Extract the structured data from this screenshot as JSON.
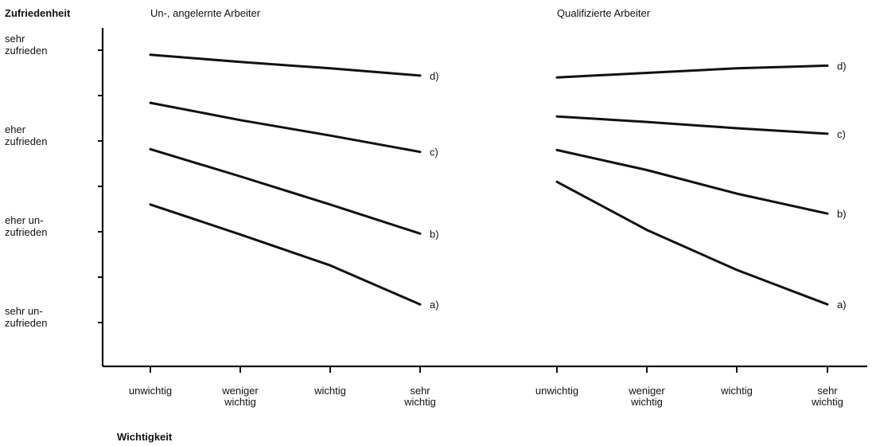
{
  "chart_data": {
    "type": "line",
    "ylabel": "Zufriedenheit",
    "xlabel": "Wichtigkeit",
    "y_categories": [
      [
        "sehr",
        "zufrieden"
      ],
      [
        "eher",
        "zufrieden"
      ],
      [
        "eher un-",
        "zufrieden"
      ],
      [
        "sehr un-",
        "zufrieden"
      ]
    ],
    "x_categories": [
      [
        "unwichtig"
      ],
      [
        "weniger",
        "wichtig"
      ],
      [
        "wichtig"
      ],
      [
        "sehr",
        "wichtig"
      ]
    ],
    "y_scale": "1 = sehr zufrieden ... 4 = sehr unzufrieden (minor ticks at half steps)",
    "ylim": [
      4.5,
      0.7
    ],
    "panels": [
      {
        "title": "Un-, angelernte Arbeiter",
        "series": [
          {
            "name": "d)",
            "values": [
              1.05,
              1.13,
              1.2,
              1.28
            ]
          },
          {
            "name": "c)",
            "values": [
              1.58,
              1.77,
              1.94,
              2.12
            ]
          },
          {
            "name": "b)",
            "values": [
              2.09,
              2.39,
              2.7,
              3.02
            ]
          },
          {
            "name": "a)",
            "values": [
              2.7,
              3.03,
              3.37,
              3.8
            ]
          }
        ]
      },
      {
        "title": "Qualifizierte Arbeiter",
        "series": [
          {
            "name": "d)",
            "values": [
              1.3,
              1.25,
              1.2,
              1.17
            ]
          },
          {
            "name": "c)",
            "values": [
              1.73,
              1.79,
              1.86,
              1.92
            ]
          },
          {
            "name": "b)",
            "values": [
              2.1,
              2.32,
              2.58,
              2.8
            ]
          },
          {
            "name": "a)",
            "values": [
              2.45,
              2.98,
              3.42,
              3.8
            ]
          }
        ]
      }
    ]
  }
}
